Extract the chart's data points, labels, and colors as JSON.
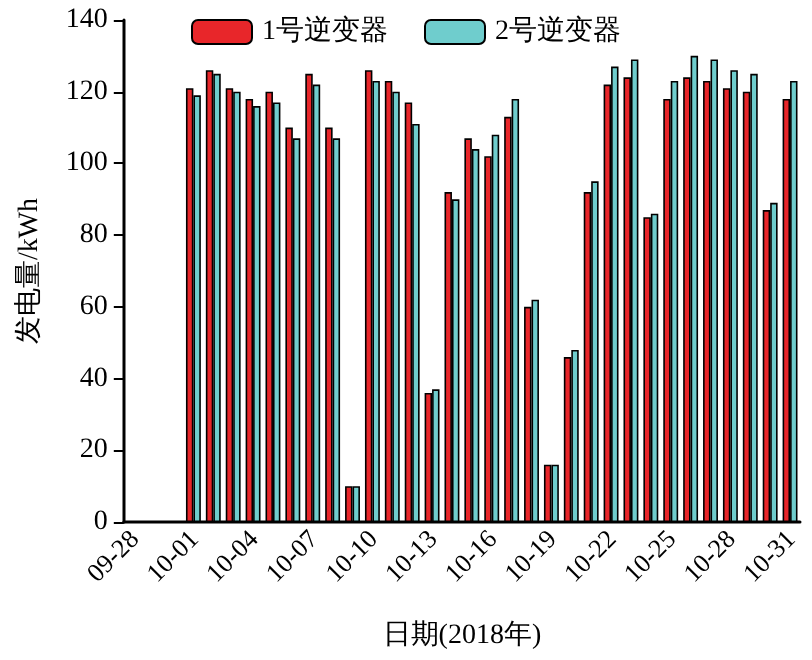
{
  "chart_data": {
    "type": "bar",
    "xlabel": "日期(2018年)",
    "ylabel": "发电量/kWh",
    "categories": [
      "09-28",
      null,
      null,
      "10-01",
      null,
      null,
      "10-04",
      null,
      null,
      "10-07",
      null,
      null,
      "10-10",
      null,
      null,
      "10-13",
      null,
      null,
      "10-16",
      null,
      null,
      "10-19",
      null,
      null,
      "10-22",
      null,
      null,
      "10-25",
      null,
      null,
      "10-28",
      null,
      null,
      "10-31"
    ],
    "series": [
      {
        "name": "1号逆变器",
        "color": "#e8262a",
        "values": [
          null,
          null,
          null,
          121,
          126,
          121,
          118,
          120,
          110,
          125,
          110,
          10,
          126,
          123,
          117,
          36,
          92,
          107,
          102,
          113,
          60,
          16,
          46,
          92,
          122,
          124,
          85,
          118,
          124,
          123,
          121,
          120,
          87,
          118
        ]
      },
      {
        "name": "2号逆变器",
        "color": "#6fcdcd",
        "values": [
          null,
          null,
          null,
          119,
          125,
          120,
          116,
          117,
          107,
          122,
          107,
          10,
          123,
          120,
          111,
          37,
          90,
          104,
          108,
          118,
          62,
          16,
          48,
          95,
          127,
          129,
          86,
          123,
          130,
          129,
          126,
          125,
          89,
          123
        ]
      }
    ],
    "ylim": [
      0,
      140
    ],
    "yticks": [
      0,
      20,
      40,
      60,
      80,
      100,
      120,
      140
    ],
    "grid": false,
    "legend": "top"
  }
}
